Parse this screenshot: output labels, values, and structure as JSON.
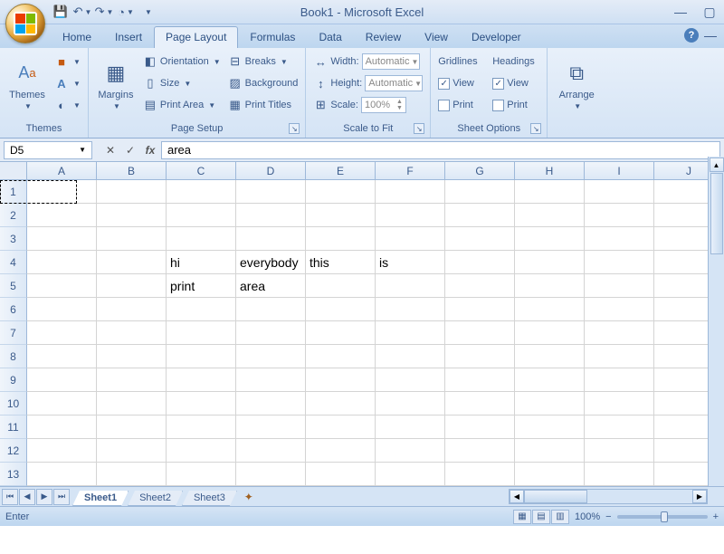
{
  "window": {
    "title": "Book1 - Microsoft Excel"
  },
  "qat": {
    "save": "💾",
    "undo": "↶",
    "redo": "↷",
    "quick": "◔"
  },
  "tabs": {
    "items": [
      "Home",
      "Insert",
      "Page Layout",
      "Formulas",
      "Data",
      "Review",
      "View",
      "Developer"
    ],
    "active": 2
  },
  "ribbon": {
    "themes": {
      "label": "Themes",
      "btn": "Themes",
      "colors": "■",
      "fonts": "A",
      "effects": "◐"
    },
    "pagesetup": {
      "label": "Page Setup",
      "margins": "Margins",
      "orientation": "Orientation",
      "size": "Size",
      "printarea": "Print Area",
      "breaks": "Breaks",
      "background": "Background",
      "printtitles": "Print Titles"
    },
    "scale": {
      "label": "Scale to Fit",
      "width": "Width:",
      "width_val": "Automatic",
      "height": "Height:",
      "height_val": "Automatic",
      "scale": "Scale:",
      "scale_val": "100%"
    },
    "sheetopts": {
      "label": "Sheet Options",
      "gridlines": "Gridlines",
      "headings": "Headings",
      "view": "View",
      "print": "Print",
      "grid_view": true,
      "grid_print": false,
      "head_view": true,
      "head_print": false
    },
    "arrange": {
      "label": "Arrange",
      "btn": "Arrange"
    }
  },
  "formulabar": {
    "name": "D5",
    "value": "area"
  },
  "columns": [
    "A",
    "B",
    "C",
    "D",
    "E",
    "F",
    "G",
    "H",
    "I",
    "J"
  ],
  "rows": [
    1,
    2,
    3,
    4,
    5,
    6,
    7,
    8,
    9,
    10,
    11,
    12,
    13
  ],
  "cells": {
    "r4c3": "hi",
    "r4c4": "everybody",
    "r4c5": "this",
    "r4c6": "is",
    "r5c3": "print",
    "r5c4": "area"
  },
  "selection": {
    "row": 1,
    "col": 1
  },
  "sheets": {
    "items": [
      "Sheet1",
      "Sheet2",
      "Sheet3"
    ],
    "active": 0
  },
  "status": {
    "mode": "Enter",
    "zoom": "100%"
  }
}
